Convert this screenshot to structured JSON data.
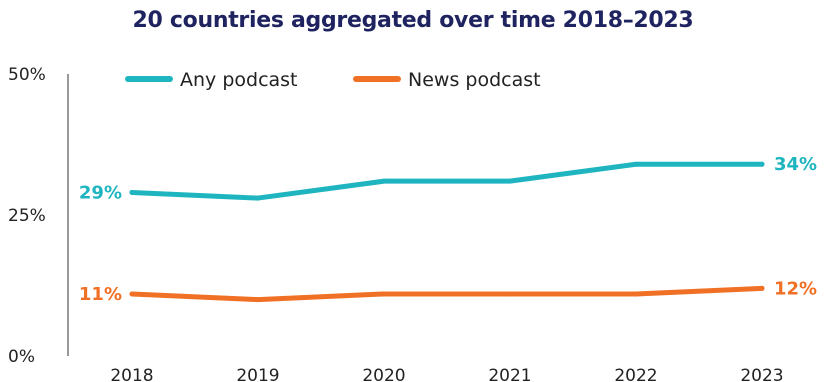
{
  "chart_data": {
    "type": "line",
    "title": "20 countries aggregated over time 2018–2023",
    "x": [
      "2018",
      "2019",
      "2020",
      "2021",
      "2022",
      "2023"
    ],
    "yticks": [
      "0%",
      "25%",
      "50%"
    ],
    "ylim": [
      0,
      50
    ],
    "grid": false,
    "legend_position": "top",
    "series": [
      {
        "name": "Any podcast",
        "color": "#1fb5c0",
        "values": [
          29,
          28,
          31,
          31,
          34,
          34
        ],
        "labels": {
          "first": "29%",
          "last": "34%"
        }
      },
      {
        "name": "News podcast",
        "color": "#f07025",
        "values": [
          11,
          10,
          11,
          11,
          11,
          12
        ],
        "labels": {
          "first": "11%",
          "last": "12%"
        }
      }
    ]
  }
}
